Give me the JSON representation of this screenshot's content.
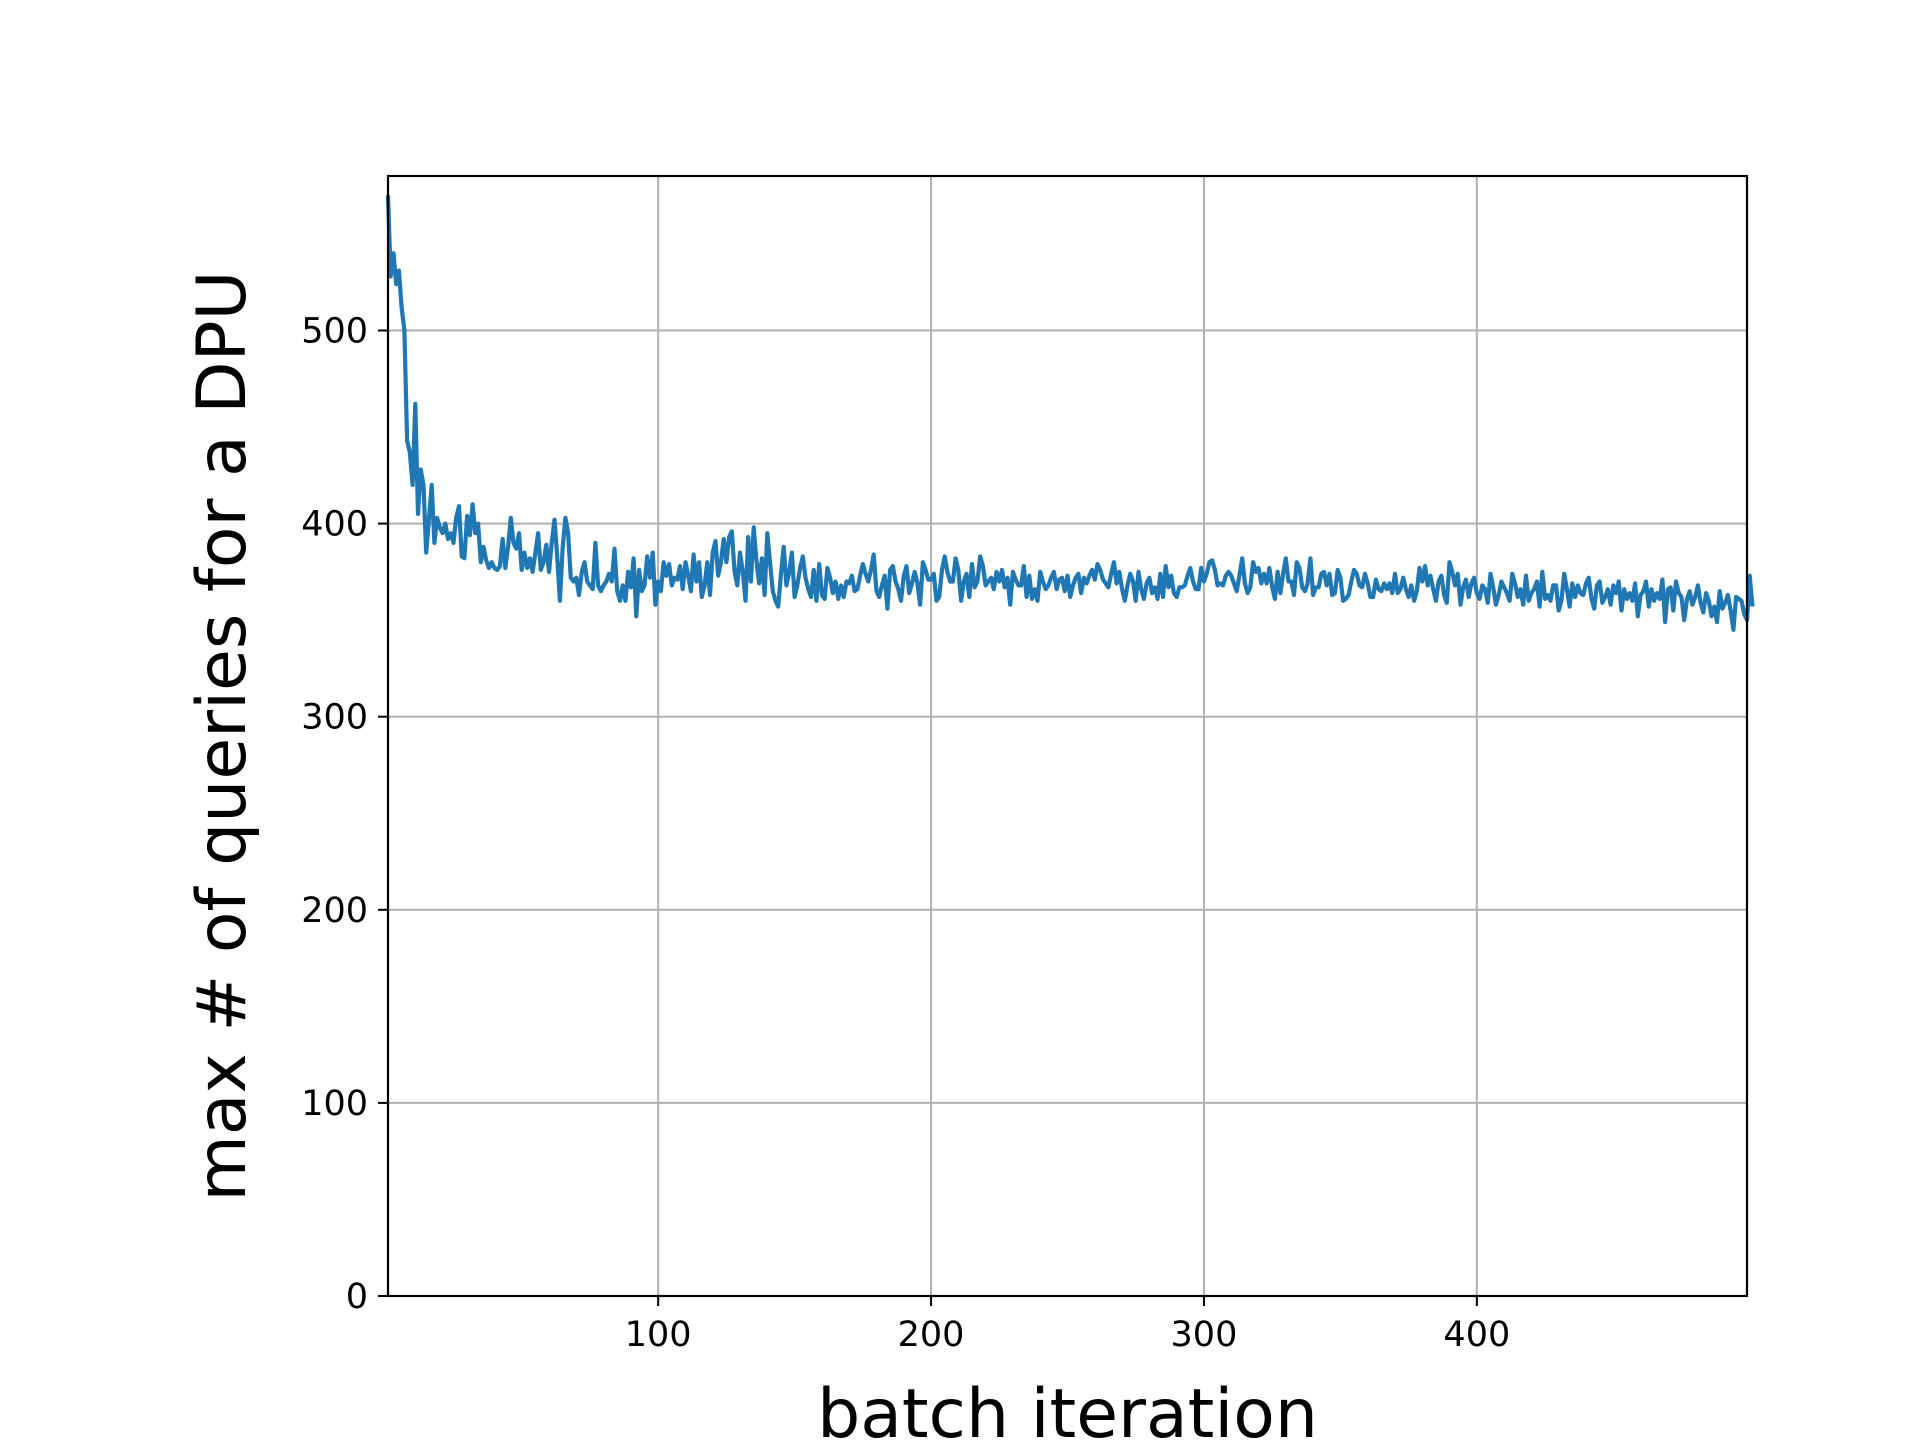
{
  "chart_data": {
    "type": "line",
    "title": "",
    "xlabel": "batch iteration",
    "ylabel": "max # of queries for a DPU",
    "xlim": [
      1,
      499
    ],
    "ylim": [
      0,
      580
    ],
    "grid": true,
    "x_ticks": [
      {
        "value": 100,
        "label": "100"
      },
      {
        "value": 200,
        "label": "200"
      },
      {
        "value": 300,
        "label": "300"
      },
      {
        "value": 400,
        "label": "400"
      }
    ],
    "y_ticks": [
      {
        "value": 0,
        "label": "0"
      },
      {
        "value": 100,
        "label": "100"
      },
      {
        "value": 200,
        "label": "200"
      },
      {
        "value": 300,
        "label": "300"
      },
      {
        "value": 400,
        "label": "400"
      },
      {
        "value": 500,
        "label": "500"
      }
    ],
    "series": [
      {
        "color": "#1f77b4",
        "x_start": 1,
        "x_step": 1,
        "values": [
          570,
          528,
          540,
          524,
          531,
          512,
          500,
          443,
          437,
          420,
          462,
          405,
          428,
          420,
          385,
          402,
          420,
          390,
          403,
          398,
          395,
          400,
          392,
          395,
          390,
          403,
          409,
          383,
          382,
          404,
          394,
          410,
          395,
          400,
          380,
          388,
          381,
          377,
          380,
          377,
          376,
          378,
          392,
          377,
          388,
          403,
          390,
          387,
          395,
          376,
          385,
          377,
          382,
          375,
          385,
          395,
          376,
          380,
          389,
          375,
          390,
          402,
          383,
          360,
          388,
          403,
          395,
          372,
          370,
          372,
          363,
          375,
          380,
          370,
          368,
          366,
          390,
          368,
          365,
          368,
          370,
          374,
          370,
          387,
          365,
          360,
          368,
          360,
          375,
          367,
          382,
          352,
          376,
          365,
          368,
          383,
          372,
          385,
          358,
          370,
          365,
          380,
          373,
          379,
          368,
          372,
          371,
          378,
          366,
          380,
          373,
          365,
          384,
          370,
          380,
          362,
          368,
          380,
          363,
          385,
          391,
          373,
          380,
          392,
          380,
          393,
          396,
          375,
          368,
          385,
          375,
          360,
          393,
          370,
          398,
          381,
          369,
          382,
          363,
          395,
          380,
          365,
          360,
          357,
          374,
          388,
          368,
          375,
          385,
          362,
          368,
          377,
          383,
          372,
          366,
          362,
          376,
          360,
          379,
          363,
          361,
          377,
          372,
          364,
          370,
          361,
          368,
          362,
          370,
          369,
          373,
          365,
          366,
          373,
          379,
          374,
          370,
          376,
          384,
          365,
          362,
          368,
          373,
          356,
          376,
          378,
          370,
          366,
          360,
          373,
          378,
          364,
          369,
          375,
          369,
          358,
          380,
          376,
          371,
          371,
          374,
          360,
          362,
          376,
          383,
          375,
          370,
          370,
          382,
          376,
          360,
          370,
          374,
          362,
          379,
          367,
          370,
          383,
          378,
          368,
          370,
          372,
          366,
          375,
          370,
          376,
          367,
          372,
          358,
          375,
          371,
          368,
          368,
          378,
          362,
          373,
          361,
          366,
          360,
          375,
          370,
          366,
          368,
          372,
          375,
          366,
          371,
          372,
          365,
          373,
          362,
          368,
          372,
          374,
          364,
          372,
          369,
          373,
          376,
          371,
          379,
          376,
          371,
          369,
          367,
          374,
          380,
          369,
          375,
          366,
          360,
          368,
          374,
          370,
          360,
          375,
          366,
          361,
          369,
          372,
          364,
          367,
          361,
          374,
          362,
          378,
          367,
          373,
          364,
          362,
          367,
          367,
          368,
          373,
          377,
          370,
          366,
          366,
          377,
          370,
          374,
          380,
          381,
          376,
          368,
          369,
          368,
          373,
          375,
          373,
          369,
          365,
          373,
          382,
          369,
          364,
          367,
          380,
          375,
          377,
          369,
          374,
          369,
          377,
          367,
          361,
          375,
          364,
          374,
          382,
          370,
          370,
          363,
          380,
          377,
          367,
          365,
          369,
          382,
          363,
          367,
          367,
          374,
          375,
          368,
          374,
          363,
          364,
          376,
          372,
          360,
          361,
          363,
          370,
          376,
          374,
          368,
          367,
          374,
          369,
          362,
          362,
          371,
          366,
          365,
          369,
          366,
          369,
          364,
          374,
          364,
          366,
          372,
          366,
          362,
          368,
          360,
          365,
          377,
          370,
          378,
          368,
          373,
          366,
          360,
          370,
          373,
          363,
          359,
          380,
          375,
          368,
          374,
          358,
          367,
          371,
          362,
          369,
          372,
          364,
          361,
          368,
          366,
          359,
          374,
          367,
          358,
          363,
          370,
          367,
          364,
          360,
          374,
          369,
          362,
          366,
          358,
          373,
          360,
          364,
          366,
          370,
          357,
          375,
          361,
          363,
          360,
          368,
          368,
          355,
          360,
          374,
          366,
          357,
          369,
          362,
          368,
          364,
          363,
          369,
          372,
          361,
          356,
          368,
          370,
          359,
          362,
          366,
          358,
          368,
          364,
          370,
          355,
          366,
          361,
          364,
          360,
          369,
          352,
          363,
          365,
          370,
          357,
          366,
          360,
          364,
          361,
          371,
          349,
          366,
          367,
          355,
          370,
          364,
          362,
          350,
          361,
          365,
          358,
          362,
          368,
          359,
          354,
          364,
          360,
          352,
          357,
          349,
          365,
          356,
          359,
          363,
          355,
          345,
          362,
          361,
          360,
          353,
          350,
          373,
          357
        ]
      }
    ]
  }
}
